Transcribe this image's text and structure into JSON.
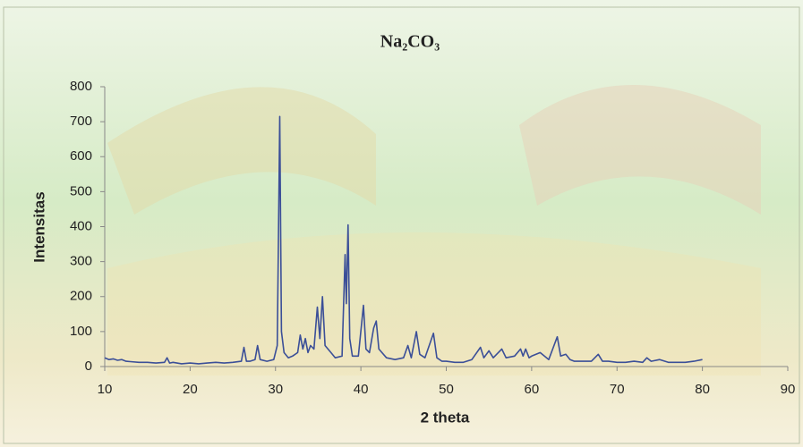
{
  "chart_data": {
    "type": "line",
    "title": "Na₂CO₃",
    "x_label": "2 theta",
    "y_label": "Intensitas",
    "x": [
      10,
      10.5,
      11,
      11.5,
      12,
      12.5,
      13,
      14,
      15,
      16,
      17,
      17.3,
      17.6,
      18,
      19,
      20,
      21,
      22,
      23,
      24,
      25,
      26,
      26.3,
      26.6,
      27,
      27.6,
      27.9,
      28.2,
      29,
      29.8,
      30.2,
      30.35,
      30.5,
      30.7,
      31,
      31.5,
      32,
      32.6,
      32.9,
      33.2,
      33.5,
      33.8,
      34.1,
      34.5,
      34.9,
      35.2,
      35.5,
      35.8,
      36.5,
      37,
      37.8,
      38.15,
      38.3,
      38.5,
      38.7,
      39,
      39.7,
      40.3,
      40.6,
      41,
      41.5,
      41.8,
      42.1,
      43,
      44,
      45,
      45.5,
      45.9,
      46.5,
      46.9,
      47.5,
      48.5,
      48.9,
      49.5,
      50,
      51,
      52,
      53,
      54,
      54.4,
      55,
      55.5,
      56.5,
      57,
      58,
      58.7,
      59,
      59.3,
      59.7,
      60,
      61,
      62,
      63,
      63.4,
      64,
      64.5,
      65,
      66,
      67,
      67.8,
      68.3,
      69,
      70,
      71,
      72,
      73,
      73.5,
      74,
      75,
      76,
      77,
      78,
      79,
      80
    ],
    "series": [
      {
        "name": "Na₂CO₃",
        "color": "#3b4f98",
        "values": [
          25,
          20,
          22,
          18,
          20,
          15,
          14,
          12,
          12,
          10,
          12,
          25,
          10,
          12,
          8,
          10,
          8,
          10,
          12,
          10,
          12,
          15,
          55,
          15,
          15,
          20,
          60,
          20,
          15,
          20,
          60,
          380,
          715,
          100,
          40,
          25,
          30,
          40,
          90,
          50,
          80,
          40,
          60,
          50,
          170,
          80,
          200,
          60,
          40,
          25,
          30,
          320,
          180,
          405,
          80,
          30,
          30,
          175,
          50,
          40,
          110,
          130,
          50,
          25,
          20,
          25,
          60,
          25,
          100,
          35,
          25,
          95,
          25,
          15,
          15,
          12,
          12,
          20,
          55,
          25,
          45,
          25,
          50,
          25,
          30,
          50,
          30,
          50,
          25,
          30,
          40,
          20,
          85,
          30,
          35,
          20,
          15,
          15,
          15,
          35,
          15,
          15,
          12,
          12,
          15,
          12,
          25,
          15,
          20,
          12,
          12,
          12,
          15,
          20
        ]
      }
    ],
    "xlim": [
      10,
      90
    ],
    "xticks": [
      10,
      20,
      30,
      40,
      50,
      60,
      70,
      80,
      90
    ],
    "ylim": [
      0,
      800
    ],
    "yticks": [
      0,
      100,
      200,
      300,
      400,
      500,
      600,
      700,
      800
    ],
    "grid": false
  }
}
